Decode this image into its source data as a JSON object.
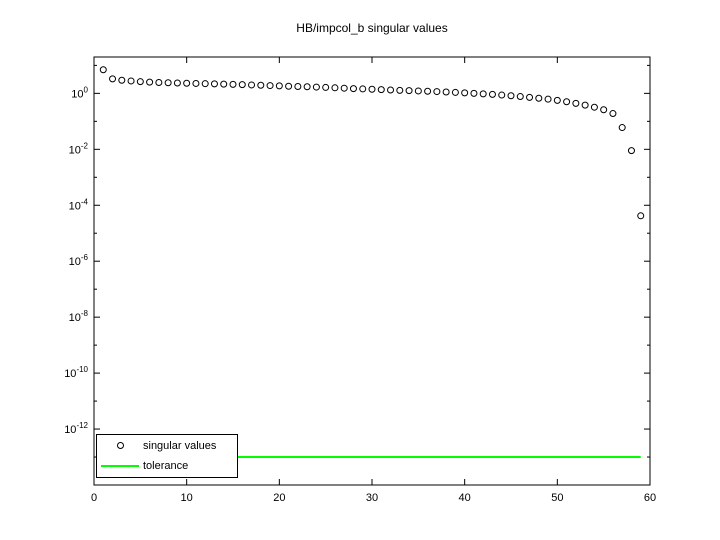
{
  "figure": {
    "background": "#ffffff"
  },
  "chart_data": {
    "type": "scatter",
    "title": "HB/impcol_b singular values",
    "xlabel": "",
    "ylabel": "",
    "xlim": [
      0,
      60
    ],
    "y_scale": "log",
    "ylim_exp": [
      -14.0,
      1.3
    ],
    "xticks": [
      0,
      10,
      20,
      30,
      40,
      50,
      60
    ],
    "ytick_exponents": [
      0,
      -2,
      -4,
      -6,
      -8,
      -10,
      -12
    ],
    "grid": false,
    "series": [
      {
        "name": "singular values",
        "marker": "circle",
        "color": "#000000",
        "x": [
          1,
          2,
          3,
          4,
          5,
          6,
          7,
          8,
          9,
          10,
          11,
          12,
          13,
          14,
          15,
          16,
          17,
          18,
          19,
          20,
          21,
          22,
          23,
          24,
          25,
          26,
          27,
          28,
          29,
          30,
          31,
          32,
          33,
          34,
          35,
          36,
          37,
          38,
          39,
          40,
          41,
          42,
          43,
          44,
          45,
          46,
          47,
          48,
          49,
          50,
          51,
          52,
          53,
          54,
          55,
          56,
          57,
          58,
          59
        ],
        "y": [
          7.0,
          3.3,
          2.95,
          2.78,
          2.62,
          2.52,
          2.45,
          2.4,
          2.35,
          2.3,
          2.26,
          2.22,
          2.18,
          2.14,
          2.1,
          2.05,
          2.0,
          1.95,
          1.9,
          1.85,
          1.8,
          1.76,
          1.72,
          1.68,
          1.63,
          1.58,
          1.53,
          1.48,
          1.44,
          1.4,
          1.36,
          1.32,
          1.28,
          1.25,
          1.22,
          1.19,
          1.16,
          1.12,
          1.08,
          1.04,
          1.0,
          0.96,
          0.92,
          0.87,
          0.82,
          0.77,
          0.72,
          0.67,
          0.62,
          0.56,
          0.5,
          0.44,
          0.38,
          0.32,
          0.26,
          0.19,
          0.06,
          0.009,
          4.2e-05
        ]
      },
      {
        "name": "tolerance",
        "marker": "line",
        "color": "#00ff00",
        "x": [
          1,
          59
        ],
        "y": [
          1e-13,
          1e-13
        ]
      }
    ],
    "legend": {
      "position": "bottom-left",
      "entries": [
        "singular values",
        "tolerance"
      ]
    }
  }
}
